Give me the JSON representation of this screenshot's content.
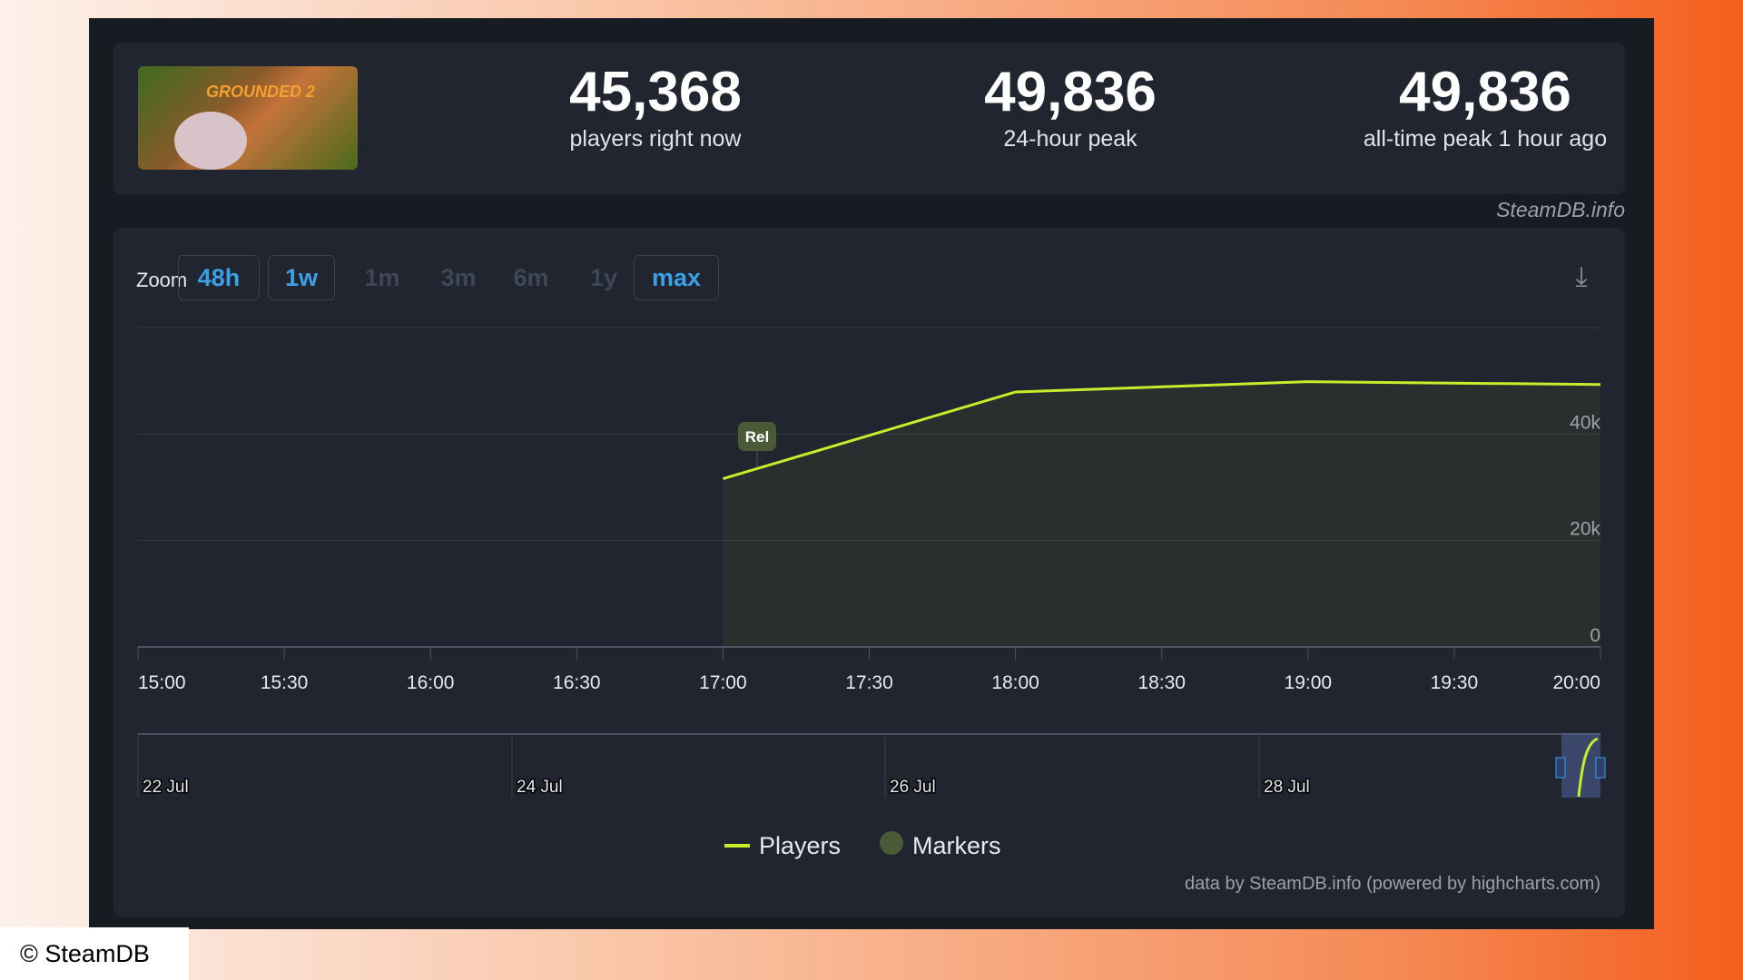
{
  "header": {
    "game_art_text": "GROUNDED 2",
    "stats": [
      {
        "value": "45,368",
        "label": "players right now"
      },
      {
        "value": "49,836",
        "label": "24-hour peak"
      },
      {
        "value": "49,836",
        "label": "all-time peak 1 hour ago"
      }
    ],
    "source": "SteamDB.info"
  },
  "zoom": {
    "label": "Zoom",
    "options": [
      {
        "label": "48h",
        "enabled": true
      },
      {
        "label": "1w",
        "enabled": true
      },
      {
        "label": "1m",
        "enabled": false
      },
      {
        "label": "3m",
        "enabled": false
      },
      {
        "label": "6m",
        "enabled": false
      },
      {
        "label": "1y",
        "enabled": false
      },
      {
        "label": "max",
        "enabled": true
      }
    ],
    "download_icon": "download-icon"
  },
  "chart_data": {
    "type": "area",
    "series": [
      {
        "name": "Players",
        "color": "#c6ee2a",
        "x": [
          "17:00",
          "18:00",
          "19:00",
          "20:00"
        ],
        "values": [
          31600,
          47900,
          49836,
          49300
        ]
      }
    ],
    "markers": [
      {
        "label": "Rel",
        "x": "17:07"
      }
    ],
    "x_ticks": [
      "15:00",
      "15:30",
      "16:00",
      "16:30",
      "17:00",
      "17:30",
      "18:00",
      "18:30",
      "19:00",
      "19:30",
      "20:00"
    ],
    "y_ticks": [
      "0",
      "20k",
      "40k"
    ],
    "ylim": [
      0,
      60000
    ],
    "navigator_ticks": [
      "22 Jul",
      "24 Jul",
      "26 Jul",
      "28 Jul"
    ],
    "legend": [
      "Players",
      "Markers"
    ],
    "legend_placement": "bottom-center"
  },
  "credits": "data by SteamDB.info (powered by highcharts.com)",
  "copyright": "© SteamDB"
}
